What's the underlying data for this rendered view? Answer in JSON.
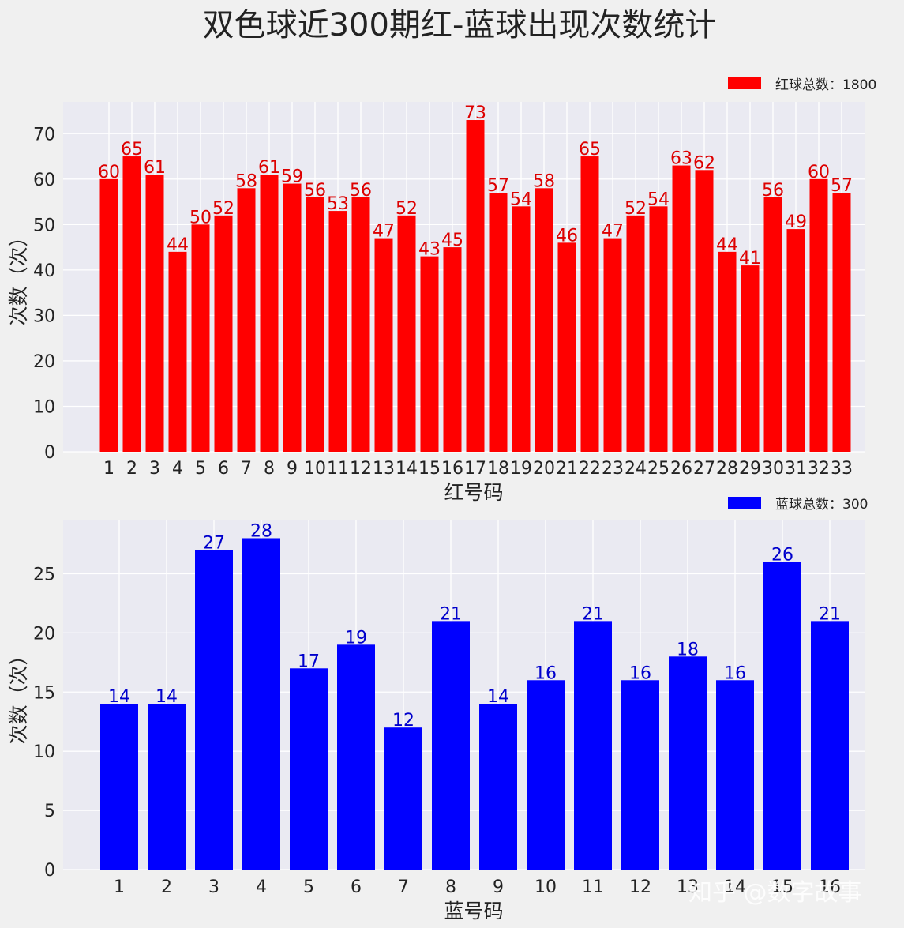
{
  "title": "双色球近300期红-蓝球出现次数统计",
  "watermark": "知乎 @数字故事",
  "chart_data": [
    {
      "type": "bar",
      "color": "#ff0000",
      "label_color": "#dd0000",
      "categories": [
        "1",
        "2",
        "3",
        "4",
        "5",
        "6",
        "7",
        "8",
        "9",
        "10",
        "11",
        "12",
        "13",
        "14",
        "15",
        "16",
        "17",
        "18",
        "19",
        "20",
        "21",
        "22",
        "23",
        "24",
        "25",
        "26",
        "27",
        "28",
        "29",
        "30",
        "31",
        "32",
        "33"
      ],
      "values": [
        60,
        65,
        61,
        44,
        50,
        52,
        58,
        61,
        59,
        56,
        53,
        56,
        47,
        52,
        43,
        45,
        73,
        57,
        54,
        58,
        46,
        65,
        47,
        52,
        54,
        63,
        62,
        44,
        41,
        56,
        49,
        60,
        57
      ],
      "legend": "红球总数：1800",
      "xlabel": "红号码",
      "ylabel": "次数（次）",
      "ylim": [
        0,
        77
      ],
      "yticks": [
        0,
        10,
        20,
        30,
        40,
        50,
        60,
        70
      ],
      "grid": true,
      "legend_position": "top-right"
    },
    {
      "type": "bar",
      "color": "#0000ff",
      "label_color": "#0000cc",
      "categories": [
        "1",
        "2",
        "3",
        "4",
        "5",
        "6",
        "7",
        "8",
        "9",
        "10",
        "11",
        "12",
        "13",
        "14",
        "15",
        "16"
      ],
      "values": [
        14,
        14,
        27,
        28,
        17,
        19,
        12,
        21,
        14,
        16,
        21,
        16,
        18,
        16,
        26,
        21
      ],
      "legend": "蓝球总数：300",
      "xlabel": "蓝号码",
      "ylabel": "次数（次）",
      "ylim": [
        0,
        29.5
      ],
      "yticks": [
        0,
        5,
        10,
        15,
        20,
        25
      ],
      "grid": true,
      "legend_position": "top-right"
    }
  ]
}
